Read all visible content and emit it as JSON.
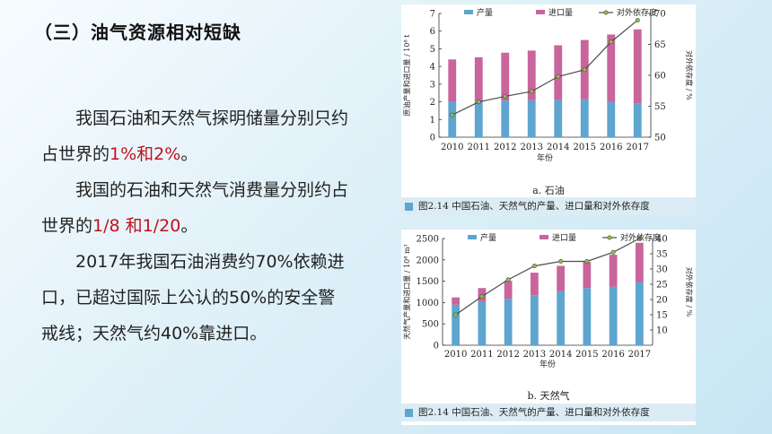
{
  "slide": {
    "title": "（三）油气资源相对短缺",
    "para1_a": "我国石油和天然气探明储量分别只约占世界的",
    "para1_red": "1%和2%",
    "para1_b": "。",
    "para2_a": "我国的石油和天然气消费量分别约占世界的",
    "para2_red": "1/8 和1/20",
    "para2_b": "。",
    "para3": "2017年我国石油消费约70%依赖进口，已超过国际上公认的50%的安全警戒线；天然气约40%靠进口。"
  },
  "figure_caption": "图2.14   中国石油、天然气的产量、进口量和对外依存度",
  "colors": {
    "production": "#5ea5cf",
    "import": "#c9649c",
    "dependence": "#4d4d4d",
    "dependence_marker": "#8fc13f",
    "highlight": "#c0121e"
  },
  "chart_data": [
    {
      "type": "bar",
      "stacked": true,
      "subcaption": "a. 石油",
      "categories": [
        "2010",
        "2011",
        "2012",
        "2013",
        "2014",
        "2015",
        "2016",
        "2017"
      ],
      "series": [
        {
          "name": "产量",
          "values": [
            2.03,
            2.03,
            2.07,
            2.09,
            2.11,
            2.15,
            2.0,
            1.91
          ]
        },
        {
          "name": "进口量",
          "values": [
            2.37,
            2.49,
            2.71,
            2.81,
            3.09,
            3.35,
            3.81,
            4.19
          ]
        }
      ],
      "line_series": {
        "name": "对外依存度",
        "values": [
          53.6,
          55.7,
          56.6,
          57.4,
          59.8,
          60.9,
          65.4,
          68.9
        ]
      },
      "xlabel": "年份",
      "ylabel": "原油产量和进口量 / 10⁸ t",
      "y2label": "对外依存度 / %",
      "ylim": [
        0,
        7
      ],
      "yticks": [
        0,
        1,
        2,
        3,
        4,
        5,
        6,
        7
      ],
      "y2lim": [
        50,
        70
      ],
      "y2ticks": [
        50,
        55,
        60,
        65,
        70
      ],
      "legend": "top",
      "grid": false
    },
    {
      "type": "bar",
      "stacked": true,
      "subcaption": "b. 天然气",
      "categories": [
        "2010",
        "2011",
        "2012",
        "2013",
        "2014",
        "2015",
        "2016",
        "2017"
      ],
      "series": [
        {
          "name": "产量",
          "values": [
            950,
            1030,
            1090,
            1170,
            1270,
            1340,
            1370,
            1480
          ]
        },
        {
          "name": "进口量",
          "values": [
            170,
            310,
            420,
            530,
            590,
            610,
            750,
            920
          ]
        }
      ],
      "line_series": {
        "name": "对外依存度",
        "values": [
          15,
          21,
          26.5,
          31,
          32.5,
          32.5,
          35.5,
          40
        ]
      },
      "xlabel": "年份",
      "ylabel": "天然气产量和进口量 / 10⁸ m³",
      "y2label": "对外依存度 / %",
      "ylim": [
        0,
        2500
      ],
      "yticks": [
        0,
        500,
        1000,
        1500,
        2000,
        2500
      ],
      "y2lim": [
        5,
        40
      ],
      "y2ticks": [
        10,
        15,
        20,
        25,
        30,
        35,
        40
      ],
      "legend": "top",
      "grid": false
    }
  ]
}
